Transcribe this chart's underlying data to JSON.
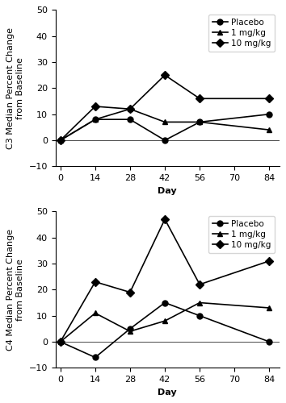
{
  "days": [
    0,
    14,
    28,
    42,
    56,
    70,
    84
  ],
  "c3": {
    "placebo": [
      0,
      8,
      8,
      0,
      7,
      null,
      10
    ],
    "1mg": [
      0,
      8,
      12,
      7,
      7,
      null,
      4
    ],
    "10mg": [
      0,
      13,
      12,
      25,
      16,
      null,
      16
    ]
  },
  "c4": {
    "placebo": [
      0,
      -6,
      5,
      15,
      10,
      null,
      0
    ],
    "1mg": [
      0,
      11,
      4,
      8,
      15,
      null,
      13
    ],
    "10mg": [
      0,
      23,
      19,
      47,
      22,
      null,
      31
    ]
  },
  "ylim": [
    -10,
    50
  ],
  "yticks": [
    -10,
    0,
    10,
    20,
    30,
    40,
    50
  ],
  "xticks": [
    0,
    14,
    28,
    42,
    56,
    70,
    84
  ],
  "xlabel": "Day",
  "c3_ylabel": "C3 Median Percent Change\nfrom Baseline",
  "c4_ylabel": "C4 Median Percent Change\nfrom Baseline",
  "legend_labels": [
    "Placebo",
    "1 mg/kg",
    "10 mg/kg"
  ],
  "line_color": "black",
  "marker_placebo": "o",
  "marker_1mg": "^",
  "marker_10mg": "D",
  "markersize": 5,
  "linewidth": 1.2,
  "fontsize_axis_label": 8,
  "fontsize_tick": 8,
  "fontsize_legend": 7.5
}
